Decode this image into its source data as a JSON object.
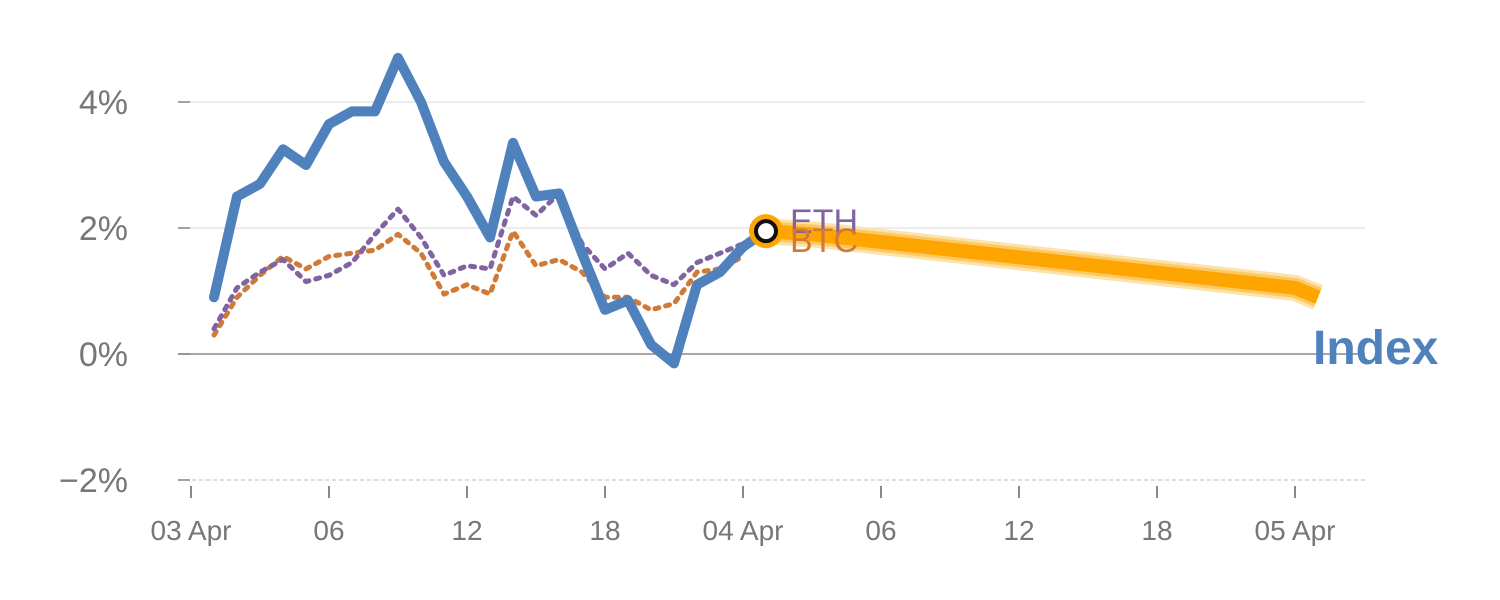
{
  "chart_data": {
    "type": "line",
    "title": "",
    "xlabel": "",
    "ylabel": "",
    "x_ticks": [
      "03 Apr",
      "06",
      "12",
      "18",
      "04 Apr",
      "06",
      "12",
      "18",
      "05 Apr"
    ],
    "y_ticks": [
      "4%",
      "2%",
      "0%",
      "−2%"
    ],
    "ylim": [
      -2,
      4.9
    ],
    "grid": true,
    "series": [
      {
        "name": "Index",
        "color": "#4f81bd",
        "style": "solid",
        "x": [
          "03 Apr 01:00",
          "03 Apr 02:00",
          "03 Apr 03:00",
          "03 Apr 04:00",
          "03 Apr 05:00",
          "03 Apr 06:00",
          "03 Apr 07:00",
          "03 Apr 08:00",
          "03 Apr 09:00",
          "03 Apr 10:00",
          "03 Apr 11:00",
          "03 Apr 12:00",
          "03 Apr 13:00",
          "03 Apr 14:00",
          "03 Apr 15:00",
          "03 Apr 16:00",
          "03 Apr 17:00",
          "03 Apr 18:00",
          "03 Apr 19:00",
          "03 Apr 20:00",
          "03 Apr 21:00",
          "03 Apr 22:00",
          "03 Apr 23:00",
          "04 Apr 00:00",
          "04 Apr 01:00"
        ],
        "y": [
          0.9,
          2.5,
          2.7,
          3.25,
          3.0,
          3.65,
          3.85,
          3.85,
          4.7,
          4.0,
          3.05,
          2.5,
          1.85,
          3.35,
          2.5,
          2.55,
          1.6,
          0.7,
          0.85,
          0.15,
          -0.15,
          1.1,
          1.3,
          1.7,
          1.95
        ]
      },
      {
        "name": "ETH",
        "color": "#8064a2",
        "style": "dotted",
        "x": [
          "03 Apr 01:00",
          "03 Apr 02:00",
          "03 Apr 03:00",
          "03 Apr 04:00",
          "03 Apr 05:00",
          "03 Apr 06:00",
          "03 Apr 07:00",
          "03 Apr 08:00",
          "03 Apr 09:00",
          "03 Apr 10:00",
          "03 Apr 11:00",
          "03 Apr 12:00",
          "03 Apr 13:00",
          "03 Apr 14:00",
          "03 Apr 15:00",
          "03 Apr 16:00",
          "03 Apr 17:00",
          "03 Apr 18:00",
          "03 Apr 19:00",
          "03 Apr 20:00",
          "03 Apr 21:00",
          "03 Apr 22:00",
          "03 Apr 23:00",
          "04 Apr 00:00",
          "04 Apr 01:00"
        ],
        "y": [
          0.4,
          1.05,
          1.3,
          1.5,
          1.15,
          1.25,
          1.45,
          1.9,
          2.3,
          1.85,
          1.25,
          1.4,
          1.35,
          2.5,
          2.2,
          2.55,
          1.75,
          1.35,
          1.6,
          1.25,
          1.1,
          1.45,
          1.6,
          1.75,
          2.0
        ]
      },
      {
        "name": "BTC",
        "color": "#d07a35",
        "style": "dotted",
        "x": [
          "03 Apr 01:00",
          "03 Apr 02:00",
          "03 Apr 03:00",
          "03 Apr 04:00",
          "03 Apr 05:00",
          "03 Apr 06:00",
          "03 Apr 07:00",
          "03 Apr 08:00",
          "03 Apr 09:00",
          "03 Apr 10:00",
          "03 Apr 11:00",
          "03 Apr 12:00",
          "03 Apr 13:00",
          "03 Apr 14:00",
          "03 Apr 15:00",
          "03 Apr 16:00",
          "03 Apr 17:00",
          "03 Apr 18:00",
          "03 Apr 19:00",
          "03 Apr 20:00",
          "03 Apr 21:00",
          "03 Apr 22:00",
          "03 Apr 23:00",
          "04 Apr 00:00"
        ],
        "y": [
          0.3,
          0.9,
          1.25,
          1.55,
          1.35,
          1.55,
          1.6,
          1.65,
          1.9,
          1.6,
          0.95,
          1.1,
          0.95,
          1.95,
          1.4,
          1.5,
          1.3,
          0.9,
          0.9,
          0.7,
          0.8,
          1.3,
          1.35,
          1.55
        ]
      },
      {
        "name": "Index forecast",
        "color": "#ffa500",
        "style": "band",
        "x": [
          "04 Apr 01:00",
          "04 Apr 03:00",
          "05 Apr 00:00",
          "05 Apr 01:00"
        ],
        "y": [
          1.95,
          1.9,
          1.05,
          0.9
        ]
      }
    ],
    "marker": {
      "series": "Index",
      "x": "04 Apr 01:00",
      "y": 1.95,
      "color": "#ffa500"
    }
  }
}
